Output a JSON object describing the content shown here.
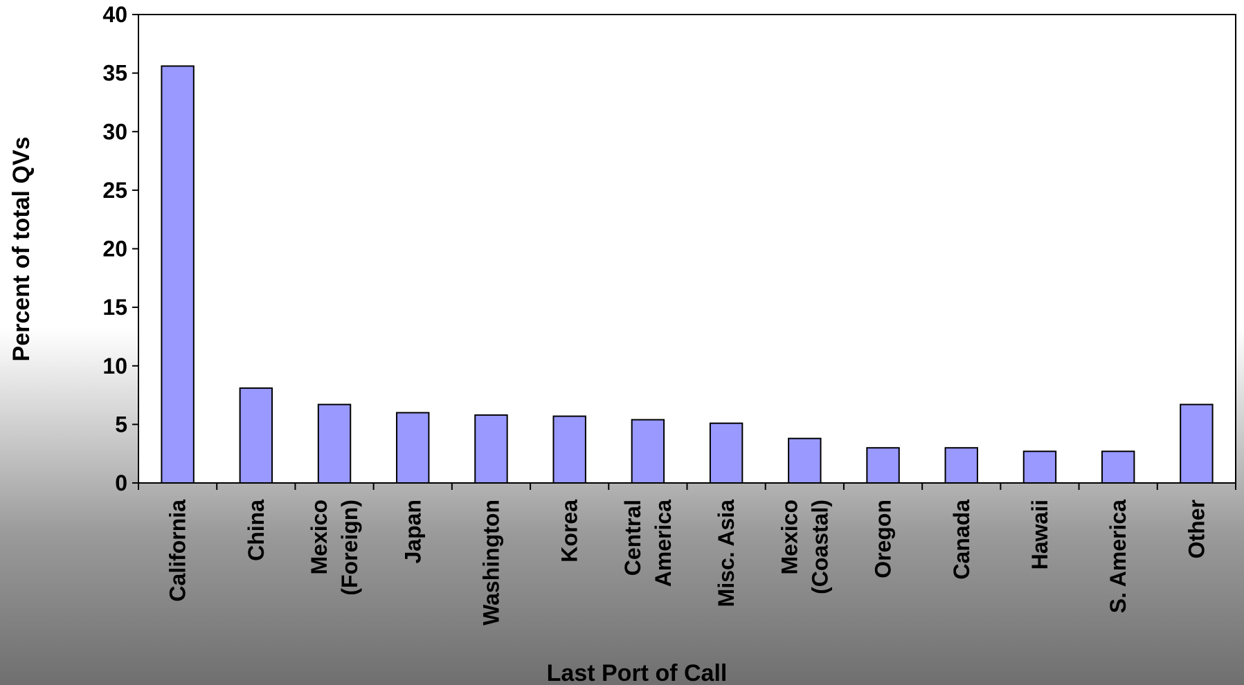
{
  "chart_data": {
    "type": "bar",
    "title": "",
    "xlabel": "Last Port of Call",
    "ylabel": "Percent of total QVs",
    "ylim": [
      0,
      40
    ],
    "yticks": [
      0,
      5,
      10,
      15,
      20,
      25,
      30,
      35,
      40
    ],
    "grid": false,
    "legend": "none",
    "bar_color": "#9999ff",
    "categories": [
      [
        "California"
      ],
      [
        "China"
      ],
      [
        "Mexico",
        "(Foreign)"
      ],
      [
        "Japan"
      ],
      [
        "Washington"
      ],
      [
        "Korea"
      ],
      [
        "Central",
        "America"
      ],
      [
        "Misc. Asia"
      ],
      [
        "Mexico",
        "(Coastal)"
      ],
      [
        "Oregon"
      ],
      [
        "Canada"
      ],
      [
        "Hawaii"
      ],
      [
        "S. America"
      ],
      [
        "Other"
      ]
    ],
    "values": [
      35.6,
      8.1,
      6.7,
      6.0,
      5.8,
      5.7,
      5.4,
      5.1,
      3.8,
      3.0,
      3.0,
      2.7,
      2.7,
      6.7
    ]
  }
}
